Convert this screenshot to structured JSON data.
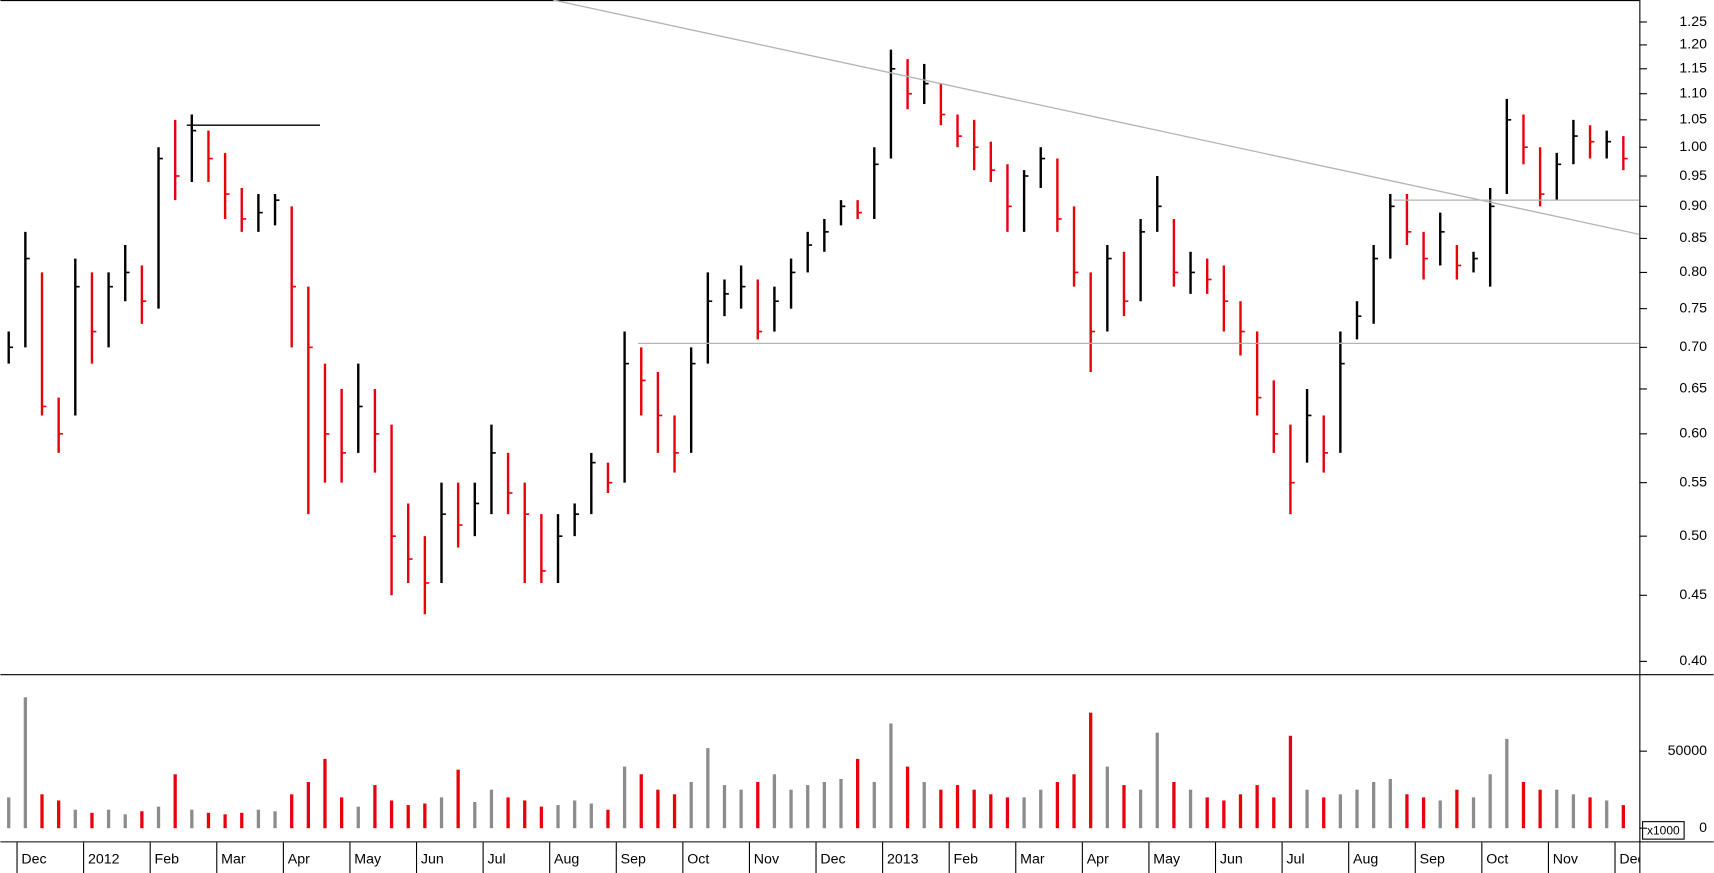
{
  "chart_data": [
    {
      "type": "ohlc",
      "categories": [
        null,
        "Dec",
        null,
        null,
        null,
        "2012",
        null,
        null,
        null,
        "Feb",
        null,
        null,
        null,
        "Mar",
        null,
        null,
        null,
        "Apr",
        null,
        null,
        null,
        "May",
        null,
        null,
        null,
        "Jun",
        null,
        null,
        null,
        "Jul",
        null,
        null,
        null,
        "Aug",
        null,
        null,
        null,
        "Sep",
        null,
        null,
        null,
        "Oct",
        null,
        null,
        null,
        "Nov",
        null,
        null,
        null,
        "Dec",
        null,
        null,
        null,
        "2013",
        null,
        null,
        null,
        "Feb",
        null,
        null,
        null,
        "Mar",
        null,
        null,
        null,
        "Apr",
        null,
        null,
        null,
        "May",
        null,
        null,
        null,
        "Jun",
        null,
        null,
        null,
        "Jul",
        null,
        null,
        null,
        "Aug",
        null,
        null,
        null,
        "Sep",
        null,
        null,
        null,
        "Oct",
        null,
        null,
        null,
        "Nov",
        null,
        null,
        null,
        "Dec"
      ],
      "high": [
        0.72,
        0.86,
        0.8,
        0.64,
        0.82,
        0.8,
        0.8,
        0.84,
        0.81,
        1.0,
        1.05,
        1.06,
        1.03,
        0.99,
        0.93,
        0.92,
        0.92,
        0.9,
        0.78,
        0.68,
        0.65,
        0.68,
        0.65,
        0.61,
        0.53,
        0.5,
        0.55,
        0.55,
        0.55,
        0.61,
        0.58,
        0.55,
        0.52,
        0.52,
        0.53,
        0.58,
        0.57,
        0.72,
        0.7,
        0.67,
        0.62,
        0.7,
        0.8,
        0.79,
        0.81,
        0.79,
        0.78,
        0.82,
        0.86,
        0.88,
        0.91,
        0.91,
        1.0,
        1.19,
        1.17,
        1.16,
        1.12,
        1.06,
        1.05,
        1.01,
        0.97,
        0.96,
        1.0,
        0.98,
        0.9,
        0.8,
        0.84,
        0.83,
        0.88,
        0.95,
        0.88,
        0.83,
        0.82,
        0.81,
        0.76,
        0.72,
        0.66,
        0.61,
        0.65,
        0.62,
        0.72,
        0.76,
        0.84,
        0.92,
        0.92,
        0.86,
        0.89,
        0.84,
        0.83,
        0.93,
        1.09,
        1.06,
        1.0,
        0.99,
        1.05,
        1.04,
        1.03,
        1.02
      ],
      "low": [
        0.68,
        0.7,
        0.62,
        0.58,
        0.62,
        0.68,
        0.7,
        0.76,
        0.73,
        0.75,
        0.91,
        0.94,
        0.94,
        0.88,
        0.86,
        0.86,
        0.87,
        0.7,
        0.52,
        0.55,
        0.55,
        0.58,
        0.56,
        0.45,
        0.46,
        0.435,
        0.46,
        0.49,
        0.5,
        0.52,
        0.52,
        0.46,
        0.46,
        0.46,
        0.5,
        0.52,
        0.54,
        0.55,
        0.62,
        0.58,
        0.56,
        0.58,
        0.68,
        0.74,
        0.75,
        0.71,
        0.72,
        0.75,
        0.8,
        0.83,
        0.87,
        0.88,
        0.88,
        0.98,
        1.07,
        1.08,
        1.04,
        1.0,
        0.96,
        0.94,
        0.86,
        0.86,
        0.93,
        0.86,
        0.78,
        0.67,
        0.72,
        0.74,
        0.76,
        0.86,
        0.78,
        0.77,
        0.77,
        0.72,
        0.69,
        0.62,
        0.58,
        0.52,
        0.57,
        0.56,
        0.58,
        0.71,
        0.73,
        0.82,
        0.84,
        0.79,
        0.81,
        0.79,
        0.8,
        0.78,
        0.92,
        0.97,
        0.9,
        0.91,
        0.97,
        0.98,
        0.98,
        0.96
      ],
      "close": [
        0.7,
        0.82,
        0.63,
        0.6,
        0.78,
        0.72,
        0.78,
        0.8,
        0.76,
        0.98,
        0.95,
        1.03,
        0.98,
        0.92,
        0.88,
        0.89,
        0.91,
        0.78,
        0.7,
        0.6,
        0.58,
        0.63,
        0.6,
        0.5,
        0.48,
        0.46,
        0.52,
        0.51,
        0.53,
        0.58,
        0.54,
        0.52,
        0.47,
        0.5,
        0.52,
        0.57,
        0.55,
        0.68,
        0.66,
        0.62,
        0.58,
        0.68,
        0.76,
        0.77,
        0.78,
        0.72,
        0.76,
        0.8,
        0.84,
        0.86,
        0.9,
        0.89,
        0.97,
        1.15,
        1.1,
        1.12,
        1.06,
        1.02,
        1.0,
        0.96,
        0.9,
        0.95,
        0.98,
        0.88,
        0.8,
        0.72,
        0.82,
        0.76,
        0.86,
        0.9,
        0.8,
        0.8,
        0.79,
        0.76,
        0.72,
        0.64,
        0.6,
        0.55,
        0.62,
        0.58,
        0.68,
        0.74,
        0.82,
        0.9,
        0.86,
        0.82,
        0.86,
        0.81,
        0.82,
        0.9,
        1.05,
        1.0,
        0.92,
        0.97,
        1.02,
        1.01,
        1.01,
        0.98
      ],
      "up_color": "#000000",
      "down_color": "#e8000b",
      "ylim": [
        0.391,
        1.3
      ],
      "log_scale": true,
      "yticks": [
        {
          "value": 0.4,
          "label": "0.40"
        },
        0.45,
        {
          "value": 0.5,
          "label": "0.50"
        },
        0.55,
        {
          "value": 0.6,
          "label": "0.60"
        },
        0.65,
        {
          "value": 0.7,
          "label": "0.70"
        },
        0.75,
        {
          "value": 0.8,
          "label": "0.80"
        },
        0.85,
        {
          "value": 0.9,
          "label": "0.90"
        },
        0.95,
        {
          "value": 1,
          "label": "1.00"
        },
        1.05,
        {
          "value": 1.1,
          "label": "1.10"
        },
        1.15,
        {
          "value": 1.2,
          "label": "1.20"
        },
        1.25
      ],
      "lines": [
        {
          "x": [
            32.7,
            98
          ],
          "y": [
            1.3,
            0.856
          ],
          "color": "#b4b4b4"
        },
        {
          "x": [
            10.7,
            18.7
          ],
          "y": [
            1.04,
            1.04
          ],
          "color": "#000000"
        },
        {
          "x": [
            37.8,
            98
          ],
          "y": [
            0.705,
            0.705
          ],
          "color": "#b4b4b4"
        },
        {
          "x": [
            83.2,
            98
          ],
          "y": [
            0.91,
            0.91
          ],
          "color": "#b4b4b4"
        }
      ]
    },
    {
      "type": "bar",
      "values": [
        20000,
        85000,
        22000,
        18000,
        12000,
        10000,
        12000,
        9000,
        11000,
        14000,
        35000,
        12000,
        10000,
        9000,
        10000,
        12000,
        11000,
        22000,
        30000,
        45000,
        20000,
        14000,
        28000,
        18000,
        15000,
        16000,
        20000,
        38000,
        17000,
        25000,
        20000,
        18000,
        14000,
        15000,
        18000,
        16000,
        12000,
        40000,
        35000,
        25000,
        22000,
        30000,
        52000,
        28000,
        25000,
        30000,
        35000,
        25000,
        28000,
        30000,
        32000,
        45000,
        30000,
        68000,
        40000,
        30000,
        25000,
        28000,
        25000,
        22000,
        20000,
        20000,
        25000,
        30000,
        35000,
        75000,
        40000,
        28000,
        25000,
        62000,
        30000,
        25000,
        20000,
        18000,
        22000,
        28000,
        20000,
        60000,
        25000,
        20000,
        22000,
        25000,
        30000,
        32000,
        22000,
        20000,
        18000,
        25000,
        20000,
        35000,
        58000,
        30000,
        25000,
        25000,
        22000,
        20000,
        18000,
        15000
      ],
      "up_color": "#8c8c8c",
      "down_color": "#e8000b",
      "ylim": [
        0,
        100000
      ],
      "yticks": [
        0,
        50000
      ],
      "unit_label": "x1000"
    }
  ]
}
